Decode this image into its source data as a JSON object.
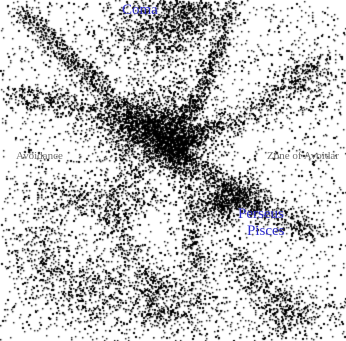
{
  "figure": {
    "colors": {
      "background": "#ffffff",
      "galaxy_dot": "#000000",
      "zone_label": "#6f6f6f",
      "cluster_label": "#2f2fcf"
    }
  },
  "labels": {
    "coma": "Coma",
    "zone_left": "Avoidance",
    "zone_right": "Zone of Avoidar",
    "perseus": "Perseus",
    "pisces": "Pisces"
  }
}
